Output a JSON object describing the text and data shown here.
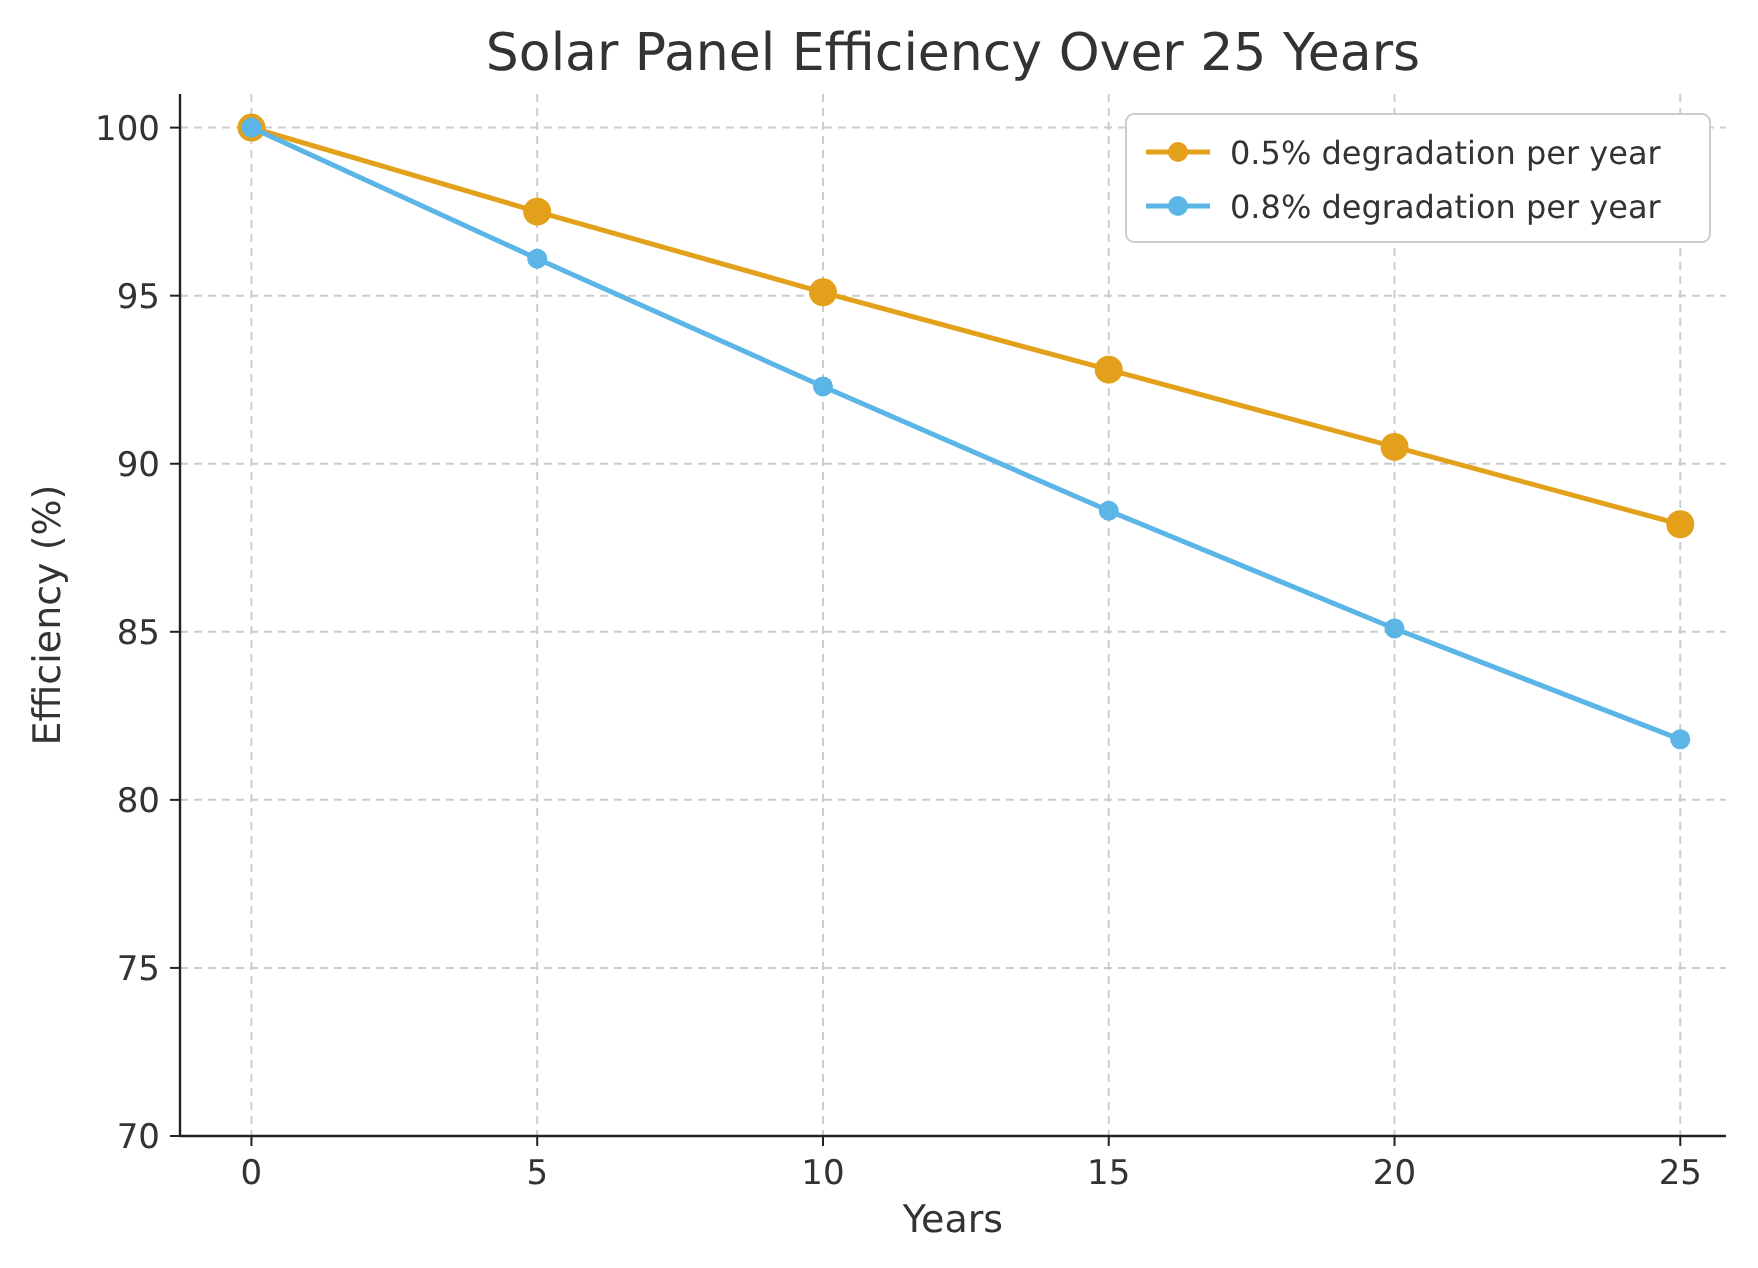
{
  "chart_data": {
    "type": "line",
    "title": "Solar Panel Efficiency Over 25 Years",
    "xlabel": "Years",
    "ylabel": "Efficiency (%)",
    "x": [
      0,
      5,
      10,
      15,
      20,
      25
    ],
    "series": [
      {
        "name": "0.5% degradation per year",
        "color": "#e3a01a",
        "values": [
          100,
          97.5,
          95.1,
          92.8,
          90.5,
          88.2
        ]
      },
      {
        "name": "0.8% degradation per year",
        "color": "#5bb5e6",
        "values": [
          100,
          96.1,
          92.3,
          88.6,
          85.1,
          81.8
        ]
      }
    ],
    "xlim": [
      -1.25,
      25.8
    ],
    "xticks": [
      0,
      5,
      10,
      15,
      20,
      25
    ],
    "ylim": [
      70,
      101
    ],
    "yticks": [
      70,
      75,
      80,
      85,
      90,
      95,
      100
    ],
    "grid": true,
    "legend": "top right",
    "marker": "circle",
    "line_style": "solid"
  }
}
